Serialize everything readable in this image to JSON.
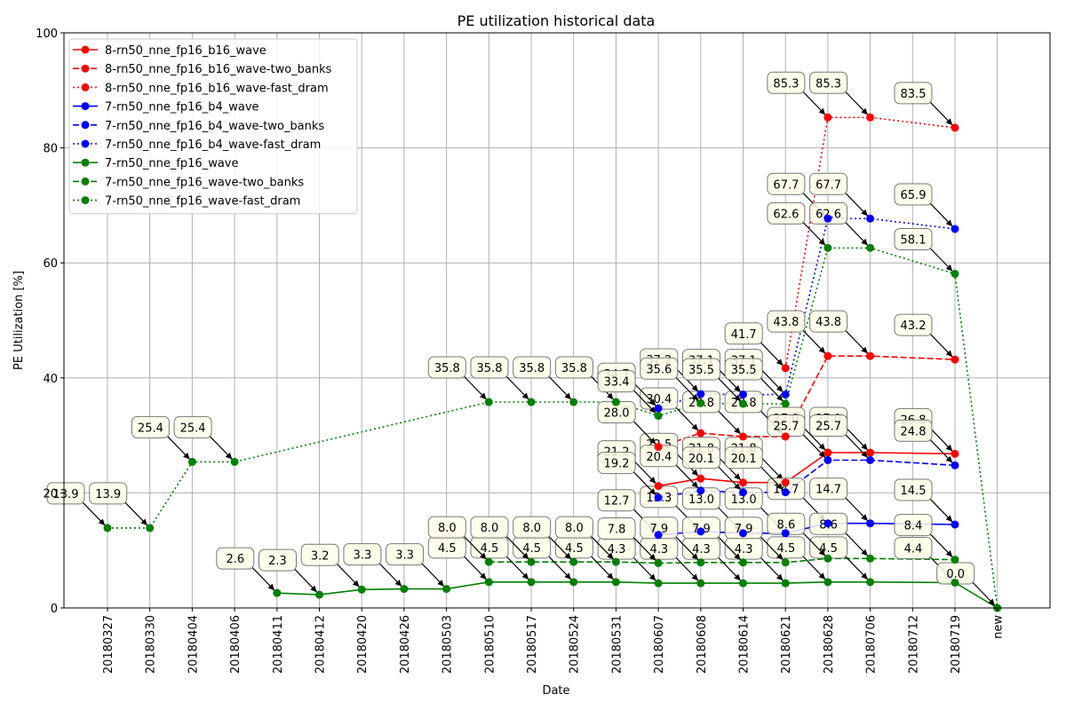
{
  "chart_data": {
    "type": "line",
    "title": "PE utilization historical data",
    "xlabel": "Date",
    "ylabel": "PE Utilization [%]",
    "ylim": [
      0,
      100
    ],
    "yticks": [
      "0",
      "20",
      "40",
      "60",
      "80",
      "100"
    ],
    "grid": true,
    "legend_position": "top-left",
    "categories": [
      "20180327",
      "20180330",
      "20180404",
      "20180406",
      "20180411",
      "20180412",
      "20180420",
      "20180426",
      "20180503",
      "20180510",
      "20180517",
      "20180524",
      "20180531",
      "20180607",
      "20180608",
      "20180614",
      "20180621",
      "20180628",
      "20180706",
      "20180712",
      "20180719",
      "new"
    ],
    "series": [
      {
        "name": "8-rn50_nne_fp16_b16_wave",
        "color": "#ff0000",
        "dash": "solid",
        "values": [
          null,
          null,
          null,
          null,
          null,
          null,
          null,
          null,
          null,
          null,
          null,
          null,
          null,
          21.2,
          22.5,
          21.8,
          21.8,
          27.0,
          27.0,
          null,
          26.8,
          null
        ],
        "labels": [
          null,
          null,
          null,
          null,
          null,
          null,
          null,
          null,
          null,
          null,
          null,
          null,
          null,
          "21.2",
          "22.5",
          "21.8",
          "21.8",
          "27.0",
          "27.0",
          null,
          "26.8",
          null
        ]
      },
      {
        "name": "8-rn50_nne_fp16_b16_wave-two_banks",
        "color": "#ff0000",
        "dash": "dashed",
        "values": [
          null,
          null,
          null,
          null,
          null,
          null,
          null,
          null,
          null,
          null,
          null,
          null,
          null,
          28.0,
          30.4,
          29.8,
          29.8,
          43.8,
          43.8,
          null,
          43.2,
          null
        ],
        "labels": [
          null,
          null,
          null,
          null,
          null,
          null,
          null,
          null,
          null,
          null,
          null,
          null,
          null,
          "28.0",
          "30.4",
          "29.8",
          "29.8",
          "43.8",
          "43.8",
          null,
          "43.2",
          null
        ]
      },
      {
        "name": "8-rn50_nne_fp16_b16_wave-fast_dram",
        "color": "#ff0000",
        "dash": "dotted",
        "values": [
          null,
          null,
          null,
          null,
          null,
          null,
          null,
          null,
          null,
          null,
          null,
          null,
          null,
          null,
          null,
          null,
          41.7,
          85.3,
          85.3,
          null,
          83.5,
          null
        ],
        "labels": [
          null,
          null,
          null,
          null,
          null,
          null,
          null,
          null,
          null,
          null,
          null,
          null,
          null,
          null,
          null,
          null,
          "41.7",
          "85.3",
          "85.3",
          null,
          "83.5",
          null
        ]
      },
      {
        "name": "7-rn50_nne_fp16_b4_wave",
        "color": "#0000ff",
        "dash": "solid",
        "values": [
          null,
          null,
          null,
          null,
          null,
          null,
          null,
          null,
          null,
          null,
          null,
          null,
          null,
          12.7,
          13.3,
          13.0,
          13.0,
          14.7,
          14.7,
          null,
          14.5,
          null
        ],
        "labels": [
          null,
          null,
          null,
          null,
          null,
          null,
          null,
          null,
          null,
          null,
          null,
          null,
          null,
          "12.7",
          "13.3",
          "13.0",
          "13.0",
          "14.7",
          "14.7",
          null,
          "14.5",
          null
        ]
      },
      {
        "name": "7-rn50_nne_fp16_b4_wave-two_banks",
        "color": "#0000ff",
        "dash": "dashed",
        "values": [
          null,
          null,
          null,
          null,
          null,
          null,
          null,
          null,
          null,
          null,
          null,
          null,
          null,
          19.2,
          20.4,
          20.1,
          20.1,
          25.7,
          25.7,
          null,
          24.8,
          null
        ],
        "labels": [
          null,
          null,
          null,
          null,
          null,
          null,
          null,
          null,
          null,
          null,
          null,
          null,
          null,
          "19.2",
          "20.4",
          "20.1",
          "20.1",
          "25.7",
          "25.7",
          null,
          "24.8",
          null
        ]
      },
      {
        "name": "7-rn50_nne_fp16_b4_wave-fast_dram",
        "color": "#0000ff",
        "dash": "dotted",
        "values": [
          null,
          null,
          null,
          null,
          null,
          null,
          null,
          null,
          null,
          null,
          null,
          null,
          null,
          34.7,
          37.2,
          37.1,
          37.1,
          67.7,
          67.7,
          null,
          65.9,
          null
        ],
        "labels": [
          null,
          null,
          null,
          null,
          null,
          null,
          null,
          null,
          null,
          null,
          null,
          null,
          null,
          "34.7",
          "37.2",
          "37.1",
          "37.1",
          "67.7",
          "67.7",
          null,
          "65.9",
          null
        ]
      },
      {
        "name": "7-rn50_nne_fp16_wave",
        "color": "#008000",
        "dash": "solid",
        "values": [
          null,
          null,
          null,
          null,
          2.6,
          2.3,
          3.2,
          3.3,
          3.3,
          4.5,
          4.5,
          4.5,
          4.5,
          4.3,
          4.3,
          4.3,
          4.3,
          4.5,
          4.5,
          null,
          4.4,
          0.0
        ],
        "labels": [
          null,
          null,
          null,
          null,
          "2.6",
          "2.3",
          "3.2",
          "3.3",
          "3.3",
          "4.5",
          "4.5",
          "4.5",
          "4.5",
          "4.3",
          "4.3",
          "4.3",
          "4.3",
          "4.5",
          "4.5",
          null,
          "4.4",
          "0.0"
        ]
      },
      {
        "name": "7-rn50_nne_fp16_wave-two_banks",
        "color": "#008000",
        "dash": "dashed",
        "values": [
          null,
          null,
          null,
          null,
          null,
          null,
          null,
          null,
          null,
          8.0,
          8.0,
          8.0,
          8.0,
          7.8,
          7.9,
          7.9,
          7.9,
          8.6,
          8.6,
          null,
          8.4,
          null
        ],
        "labels": [
          null,
          null,
          null,
          null,
          null,
          null,
          null,
          null,
          null,
          "8.0",
          "8.0",
          "8.0",
          "8.0",
          "7.8",
          "7.9",
          "7.9",
          "7.9",
          "8.6",
          "8.6",
          null,
          "8.4",
          null
        ]
      },
      {
        "name": "7-rn50_nne_fp16_wave-fast_dram",
        "color": "#008000",
        "dash": "dotted",
        "values": [
          13.9,
          13.9,
          25.4,
          25.4,
          null,
          null,
          null,
          null,
          null,
          35.8,
          35.8,
          35.8,
          35.8,
          33.4,
          35.6,
          35.5,
          35.5,
          62.6,
          62.6,
          null,
          58.1,
          0.0
        ],
        "labels": [
          "13.9",
          "13.9",
          "25.4",
          "25.4",
          null,
          null,
          null,
          null,
          null,
          "35.8",
          "35.8",
          "35.8",
          "35.8",
          "33.4",
          "35.6",
          "35.5",
          "35.5",
          "62.6",
          "62.6",
          null,
          "58.1",
          null
        ]
      }
    ]
  }
}
